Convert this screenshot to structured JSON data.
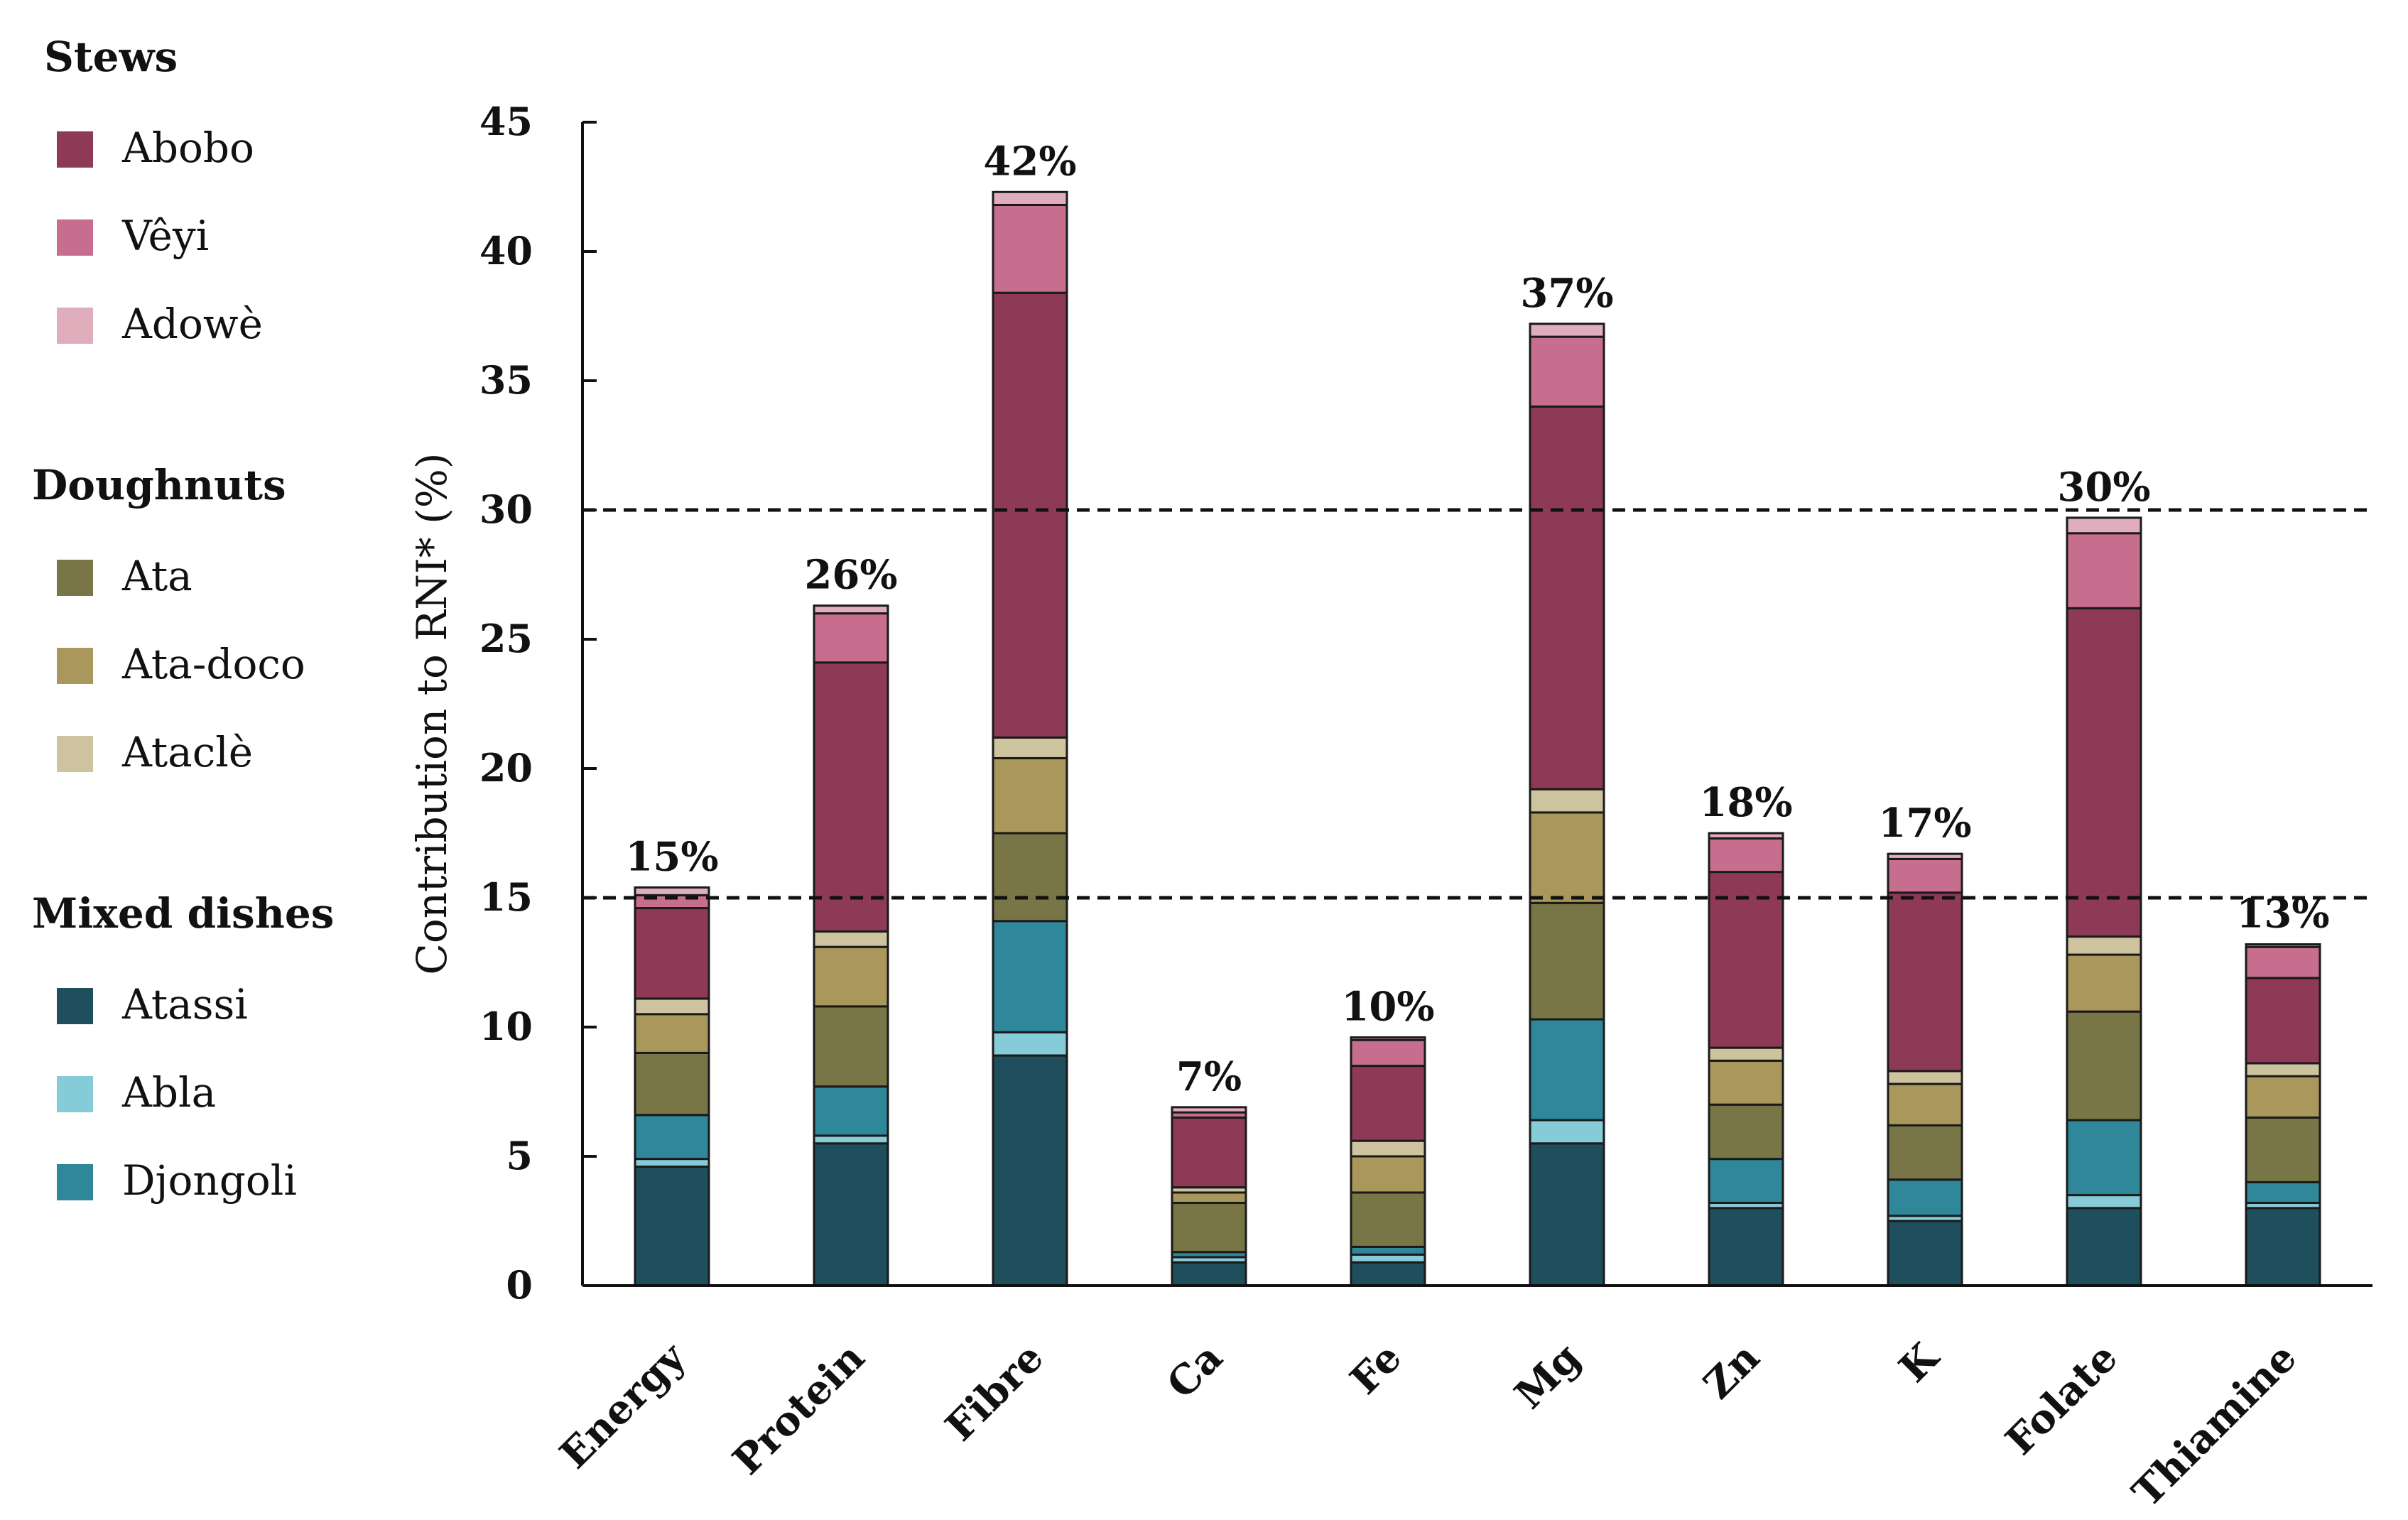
{
  "chart_data": {
    "type": "stacked-bar",
    "title": "",
    "xlabel": "",
    "ylabel": "Contribution to RNI* (%)",
    "ylim": [
      0,
      45
    ],
    "yticks": [
      0,
      5,
      10,
      15,
      20,
      25,
      30,
      35,
      40,
      45
    ],
    "reference_lines": [
      15,
      30
    ],
    "categories": [
      "Energy",
      "Protein",
      "Fibre",
      "Ca",
      "Fe",
      "Mg",
      "Zn",
      "K",
      "Folate",
      "Thiamine"
    ],
    "totals_labels": [
      "15%",
      "26%",
      "42%",
      "7%",
      "10%",
      "37%",
      "18%",
      "17%",
      "30%",
      "13%"
    ],
    "legend_groups": [
      {
        "title": "Stews",
        "items": [
          "Abobo",
          "Vêyi",
          "Adowè"
        ]
      },
      {
        "title": "Doughnuts",
        "items": [
          "Ata",
          "Ata-doco",
          "Ataclè"
        ]
      },
      {
        "title": "Mixed dishes",
        "items": [
          "Atassi",
          "Abla",
          "Djongoli"
        ]
      }
    ],
    "series": [
      {
        "name": "Atassi",
        "color": "#1f4e5c",
        "values": [
          4.6,
          5.5,
          8.9,
          0.9,
          0.9,
          5.5,
          3.0,
          2.5,
          3.0,
          3.0
        ]
      },
      {
        "name": "Abla",
        "color": "#86cbd8",
        "values": [
          0.3,
          0.3,
          0.9,
          0.2,
          0.3,
          0.9,
          0.2,
          0.2,
          0.5,
          0.2
        ]
      },
      {
        "name": "Djongoli",
        "color": "#2f879a",
        "values": [
          1.7,
          1.9,
          4.3,
          0.2,
          0.3,
          3.9,
          1.7,
          1.4,
          2.9,
          0.8
        ]
      },
      {
        "name": "Ata",
        "color": "#787546",
        "values": [
          2.4,
          3.1,
          3.4,
          1.9,
          2.1,
          4.5,
          2.1,
          2.1,
          4.2,
          2.5
        ]
      },
      {
        "name": "Ata-doco",
        "color": "#a9975c",
        "values": [
          1.5,
          2.3,
          2.9,
          0.4,
          1.4,
          3.5,
          1.7,
          1.6,
          2.2,
          1.6
        ]
      },
      {
        "name": "Ataclè",
        "color": "#cdc39f",
        "values": [
          0.6,
          0.6,
          0.8,
          0.2,
          0.6,
          0.9,
          0.5,
          0.5,
          0.7,
          0.5
        ]
      },
      {
        "name": "Abobo",
        "color": "#8e3a57",
        "values": [
          3.5,
          10.4,
          17.2,
          2.7,
          2.9,
          14.8,
          6.8,
          6.9,
          12.7,
          3.3
        ]
      },
      {
        "name": "Vêyi",
        "color": "#c76e8e",
        "values": [
          0.5,
          1.9,
          3.4,
          0.2,
          1.0,
          2.7,
          1.3,
          1.3,
          2.9,
          1.2
        ]
      },
      {
        "name": "Adowè",
        "color": "#e0adbd",
        "values": [
          0.3,
          0.3,
          0.5,
          0.2,
          0.1,
          0.5,
          0.2,
          0.2,
          0.6,
          0.1
        ]
      }
    ]
  }
}
